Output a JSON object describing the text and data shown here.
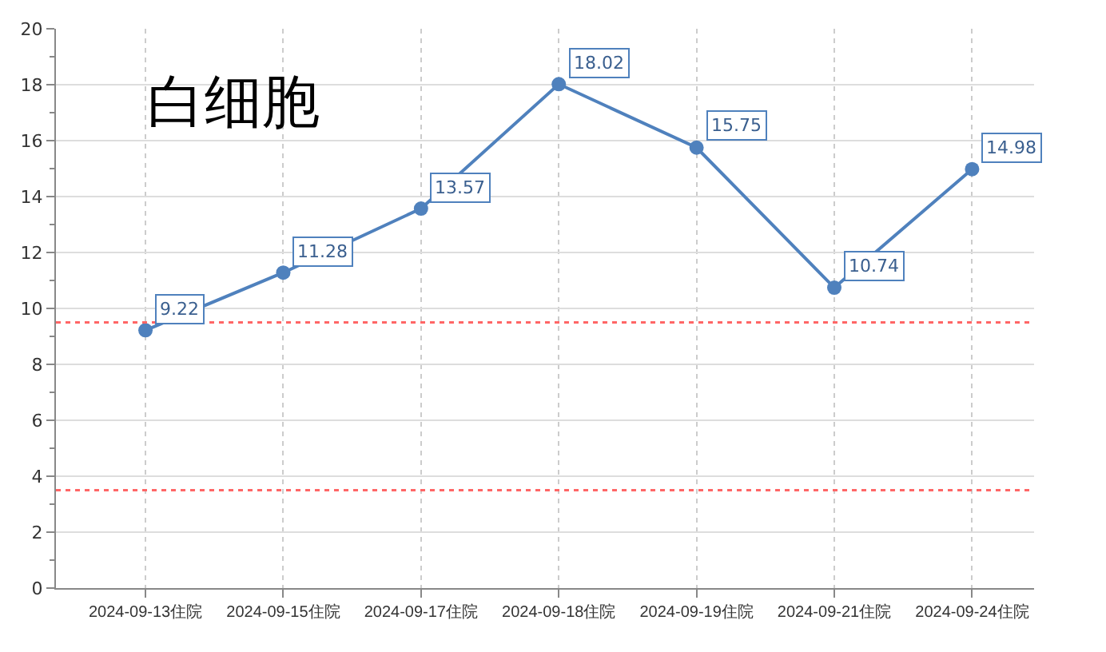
{
  "chart_data": {
    "type": "line",
    "title": "白细胞",
    "categories": [
      "2024-09-13住院",
      "2024-09-15住院",
      "2024-09-17住院",
      "2024-09-18住院",
      "2024-09-19住院",
      "2024-09-21住院",
      "2024-09-24住院"
    ],
    "series": [
      {
        "color": "#4f81bd",
        "values": [
          9.22,
          11.28,
          13.57,
          18.02,
          15.75,
          10.74,
          14.98
        ]
      }
    ],
    "ylim": [
      0,
      20
    ],
    "yticks": [
      0,
      2,
      4,
      6,
      8,
      10,
      12,
      14,
      16,
      18,
      20
    ],
    "ref_lines": [
      {
        "axis": "y",
        "value": 9.5,
        "color": "#ff6666",
        "line_style": "dotted"
      },
      {
        "axis": "y",
        "value": 3.5,
        "color": "#ff6666",
        "line_style": "dotted"
      }
    ],
    "data_labels": true,
    "grid": true,
    "marker": "circle",
    "line_style": "solid",
    "legend": false
  }
}
